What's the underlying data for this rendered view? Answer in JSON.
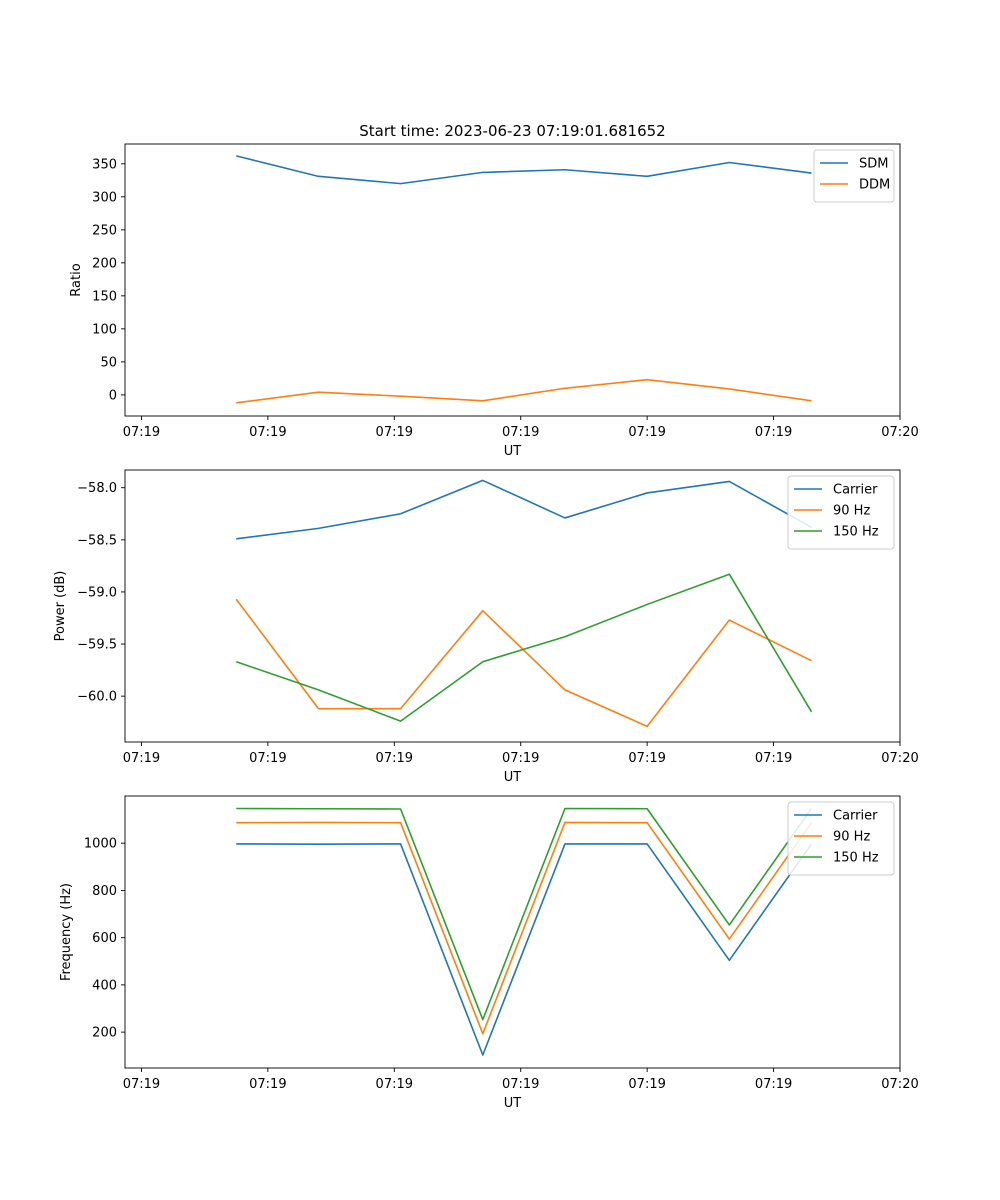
{
  "chart_data": [
    {
      "type": "line",
      "title": "Start time: 2023-06-23 07:19:01.681652",
      "xlabel": "UT",
      "ylabel": "Ratio",
      "x": [
        0.75,
        1.4,
        2.05,
        2.7,
        3.35,
        4.0,
        4.65,
        5.3
      ],
      "xlim": [
        -0.13,
        6.0
      ],
      "xticks": [
        0,
        1,
        2,
        3,
        4,
        5,
        6
      ],
      "xtick_labels": [
        "07:19",
        "07:19",
        "07:19",
        "07:19",
        "07:19",
        "07:19",
        "07:20"
      ],
      "ylim": [
        -32,
        380
      ],
      "yticks": [
        0,
        50,
        100,
        150,
        200,
        250,
        300,
        350
      ],
      "yticks_labels": [
        "0",
        "50",
        "100",
        "150",
        "200",
        "250",
        "300",
        "350"
      ],
      "legend": "top-right",
      "series": [
        {
          "name": "SDM",
          "color": "#1f77b4",
          "values": [
            362,
            331,
            320,
            337,
            341,
            331,
            352,
            336
          ]
        },
        {
          "name": "DDM",
          "color": "#ff7f0e",
          "values": [
            -12,
            4,
            -2,
            -9,
            10,
            23,
            9,
            -9
          ]
        }
      ]
    },
    {
      "type": "line",
      "title": "",
      "xlabel": "UT",
      "ylabel": "Power (dB)",
      "x": [
        0.75,
        1.4,
        2.05,
        2.7,
        3.35,
        4.0,
        4.65,
        5.3
      ],
      "xlim": [
        -0.13,
        6.0
      ],
      "xticks": [
        0,
        1,
        2,
        3,
        4,
        5,
        6
      ],
      "xtick_labels": [
        "07:19",
        "07:19",
        "07:19",
        "07:19",
        "07:19",
        "07:19",
        "07:20"
      ],
      "ylim": [
        -60.44,
        -57.83
      ],
      "yticks": [
        -60.0,
        -59.5,
        -59.0,
        -58.5,
        -58.0
      ],
      "yticks_labels": [
        "−60.0",
        "−59.5",
        "−59.0",
        "−58.5",
        "−58.0"
      ],
      "legend": "top-right",
      "series": [
        {
          "name": "Carrier",
          "color": "#1f77b4",
          "values": [
            -58.49,
            -58.39,
            -58.25,
            -57.93,
            -58.29,
            -58.05,
            -57.94,
            -58.38
          ]
        },
        {
          "name": "90 Hz",
          "color": "#ff7f0e",
          "values": [
            -59.07,
            -60.12,
            -60.12,
            -59.18,
            -59.94,
            -60.29,
            -59.27,
            -59.66
          ]
        },
        {
          "name": "150 Hz",
          "color": "#2ca02c",
          "values": [
            -59.67,
            -59.94,
            -60.24,
            -59.67,
            -59.43,
            -59.12,
            -58.83,
            -60.15
          ]
        }
      ]
    },
    {
      "type": "line",
      "title": "",
      "xlabel": "UT",
      "ylabel": "Frequency (Hz)",
      "x": [
        0.75,
        1.4,
        2.05,
        2.7,
        3.35,
        4.0,
        4.65,
        5.3
      ],
      "xlim": [
        -0.13,
        6.0
      ],
      "xticks": [
        0,
        1,
        2,
        3,
        4,
        5,
        6
      ],
      "xtick_labels": [
        "07:19",
        "07:19",
        "07:19",
        "07:19",
        "07:19",
        "07:19",
        "07:20"
      ],
      "ylim": [
        48,
        1200
      ],
      "yticks": [
        200,
        400,
        600,
        800,
        1000
      ],
      "yticks_labels": [
        "200",
        "400",
        "600",
        "800",
        "1000"
      ],
      "legend": "top-right",
      "series": [
        {
          "name": "Carrier",
          "color": "#1f77b4",
          "values": [
            997,
            996,
            997,
            103,
            997,
            997,
            504,
            997
          ]
        },
        {
          "name": "90 Hz",
          "color": "#ff7f0e",
          "values": [
            1087,
            1088,
            1087,
            193,
            1088,
            1087,
            594,
            1087
          ]
        },
        {
          "name": "150 Hz",
          "color": "#2ca02c",
          "values": [
            1147,
            1146,
            1145,
            253,
            1147,
            1146,
            654,
            1147
          ]
        }
      ]
    }
  ]
}
